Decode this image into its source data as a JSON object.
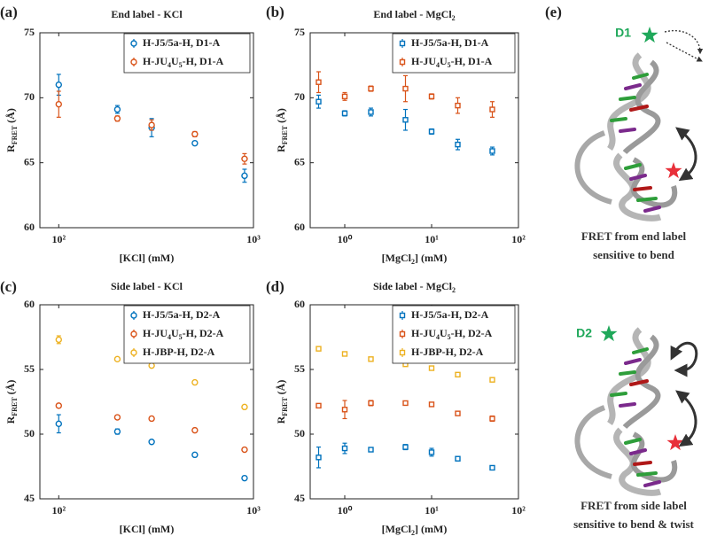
{
  "chart_data": [
    {
      "type": "scatter",
      "panel_label": "(a)",
      "title": "End label - KCl",
      "xlabel": "[KCl] (mM)",
      "ylabel": "RFRET (Å)",
      "x": [
        100,
        200,
        300,
        500,
        900
      ],
      "xscale": "log",
      "xlim": [
        80,
        1000
      ],
      "xticks": [
        {
          "value": 100,
          "label": "10²"
        },
        {
          "value": 1000,
          "label": "10³"
        }
      ],
      "ylim": [
        60,
        75
      ],
      "yticks": [
        60,
        65,
        70,
        75
      ],
      "legend": "upper right",
      "marker": "circle",
      "series": [
        {
          "name": "H-J5/5a-H, D1-A",
          "color": "#0072bd",
          "values": [
            71.0,
            69.1,
            67.7,
            66.5,
            64.0
          ],
          "errors": [
            0.8,
            0.3,
            0.7,
            0.15,
            0.5
          ]
        },
        {
          "name": "H-JU4U5-H, D1-A",
          "color": "#d95319",
          "values": [
            69.5,
            68.4,
            67.9,
            67.2,
            65.3
          ],
          "errors": [
            1.0,
            0.2,
            0.4,
            0.2,
            0.4
          ]
        }
      ]
    },
    {
      "type": "scatter",
      "panel_label": "(b)",
      "title": "End label - MgCl2",
      "xlabel": "[MgCl2] (mM)",
      "ylabel": "RFRET (Å)",
      "x": [
        0.5,
        1,
        2,
        5,
        10,
        20,
        50
      ],
      "xscale": "log",
      "xlim": [
        0.4,
        100
      ],
      "xticks": [
        {
          "value": 1,
          "label": "10⁰"
        },
        {
          "value": 10,
          "label": "10¹"
        },
        {
          "value": 100,
          "label": "10²"
        }
      ],
      "ylim": [
        60,
        75
      ],
      "yticks": [
        60,
        65,
        70,
        75
      ],
      "legend": "upper right",
      "marker": "square",
      "series": [
        {
          "name": "H-J5/5a-H, D1-A",
          "color": "#0072bd",
          "values": [
            69.7,
            68.8,
            68.9,
            68.3,
            67.4,
            66.4,
            65.9
          ],
          "errors": [
            0.5,
            0.2,
            0.3,
            0.8,
            0.2,
            0.4,
            0.3
          ]
        },
        {
          "name": "H-JU4U5-H, D1-A",
          "color": "#d95319",
          "values": [
            71.2,
            70.1,
            70.7,
            70.7,
            70.1,
            69.4,
            69.1
          ],
          "errors": [
            0.8,
            0.3,
            0.2,
            1.0,
            0.2,
            0.6,
            0.6
          ]
        }
      ]
    },
    {
      "type": "scatter",
      "panel_label": "(c)",
      "title": "Side label - KCl",
      "xlabel": "[KCl] (mM)",
      "ylabel": "RFRET (Å)",
      "x": [
        100,
        200,
        300,
        500,
        900
      ],
      "xscale": "log",
      "xlim": [
        80,
        1000
      ],
      "xticks": [
        {
          "value": 100,
          "label": "10²"
        },
        {
          "value": 1000,
          "label": "10³"
        }
      ],
      "ylim": [
        45,
        60
      ],
      "yticks": [
        45,
        50,
        55,
        60
      ],
      "legend": "upper right",
      "marker": "circle",
      "series": [
        {
          "name": "H-J5/5a-H, D2-A",
          "color": "#0072bd",
          "values": [
            50.8,
            50.2,
            49.4,
            48.4,
            46.6
          ],
          "errors": [
            0.7,
            0.2,
            0.1,
            0.15,
            0.15
          ]
        },
        {
          "name": "H-JU4U5-H, D2-A",
          "color": "#d95319",
          "values": [
            52.2,
            51.3,
            51.2,
            50.3,
            48.8
          ],
          "errors": [
            0.15,
            0.15,
            0.15,
            0.15,
            0.1
          ]
        },
        {
          "name": "H-JBP-H, D2-A",
          "color": "#edb120",
          "values": [
            57.3,
            55.8,
            55.3,
            54.0,
            52.1
          ],
          "errors": [
            0.3,
            0.1,
            0.15,
            0.1,
            0.1
          ]
        }
      ]
    },
    {
      "type": "scatter",
      "panel_label": "(d)",
      "title": "Side label - MgCl2",
      "xlabel": "[MgCl2] (mM)",
      "ylabel": "RFRET (Å)",
      "x": [
        0.5,
        1,
        2,
        5,
        10,
        20,
        50
      ],
      "xscale": "log",
      "xlim": [
        0.4,
        100
      ],
      "xticks": [
        {
          "value": 1,
          "label": "10⁰"
        },
        {
          "value": 10,
          "label": "10¹"
        },
        {
          "value": 100,
          "label": "10²"
        }
      ],
      "ylim": [
        45,
        60
      ],
      "yticks": [
        45,
        50,
        55,
        60
      ],
      "legend": "upper right",
      "marker": "square",
      "series": [
        {
          "name": "H-J5/5a-H, D2-A",
          "color": "#0072bd",
          "values": [
            48.2,
            48.9,
            48.8,
            49.0,
            48.6,
            48.1,
            47.4
          ],
          "errors": [
            0.8,
            0.4,
            0.15,
            0.2,
            0.3,
            0.15,
            0.15
          ]
        },
        {
          "name": "H-JU4U5-H, D2-A",
          "color": "#d95319",
          "values": [
            52.2,
            51.9,
            52.4,
            52.4,
            52.3,
            51.6,
            51.2
          ],
          "errors": [
            0.1,
            0.7,
            0.2,
            0.15,
            0.1,
            0.15,
            0.2
          ]
        },
        {
          "name": "H-JBP-H, D2-A",
          "color": "#edb120",
          "values": [
            56.6,
            56.2,
            55.8,
            55.4,
            55.1,
            54.6,
            54.2
          ],
          "errors": [
            0.15,
            0.1,
            0.1,
            0.1,
            0.1,
            0.1,
            0.1
          ]
        }
      ]
    }
  ],
  "panel_e": {
    "label": "(e)",
    "top": {
      "tag": "D1",
      "caption": [
        "FRET from end label",
        "sensitive to bend"
      ]
    },
    "bottom": {
      "tag": "D2",
      "caption": [
        "FRET from side label",
        "sensitive to bend & twist"
      ]
    }
  }
}
